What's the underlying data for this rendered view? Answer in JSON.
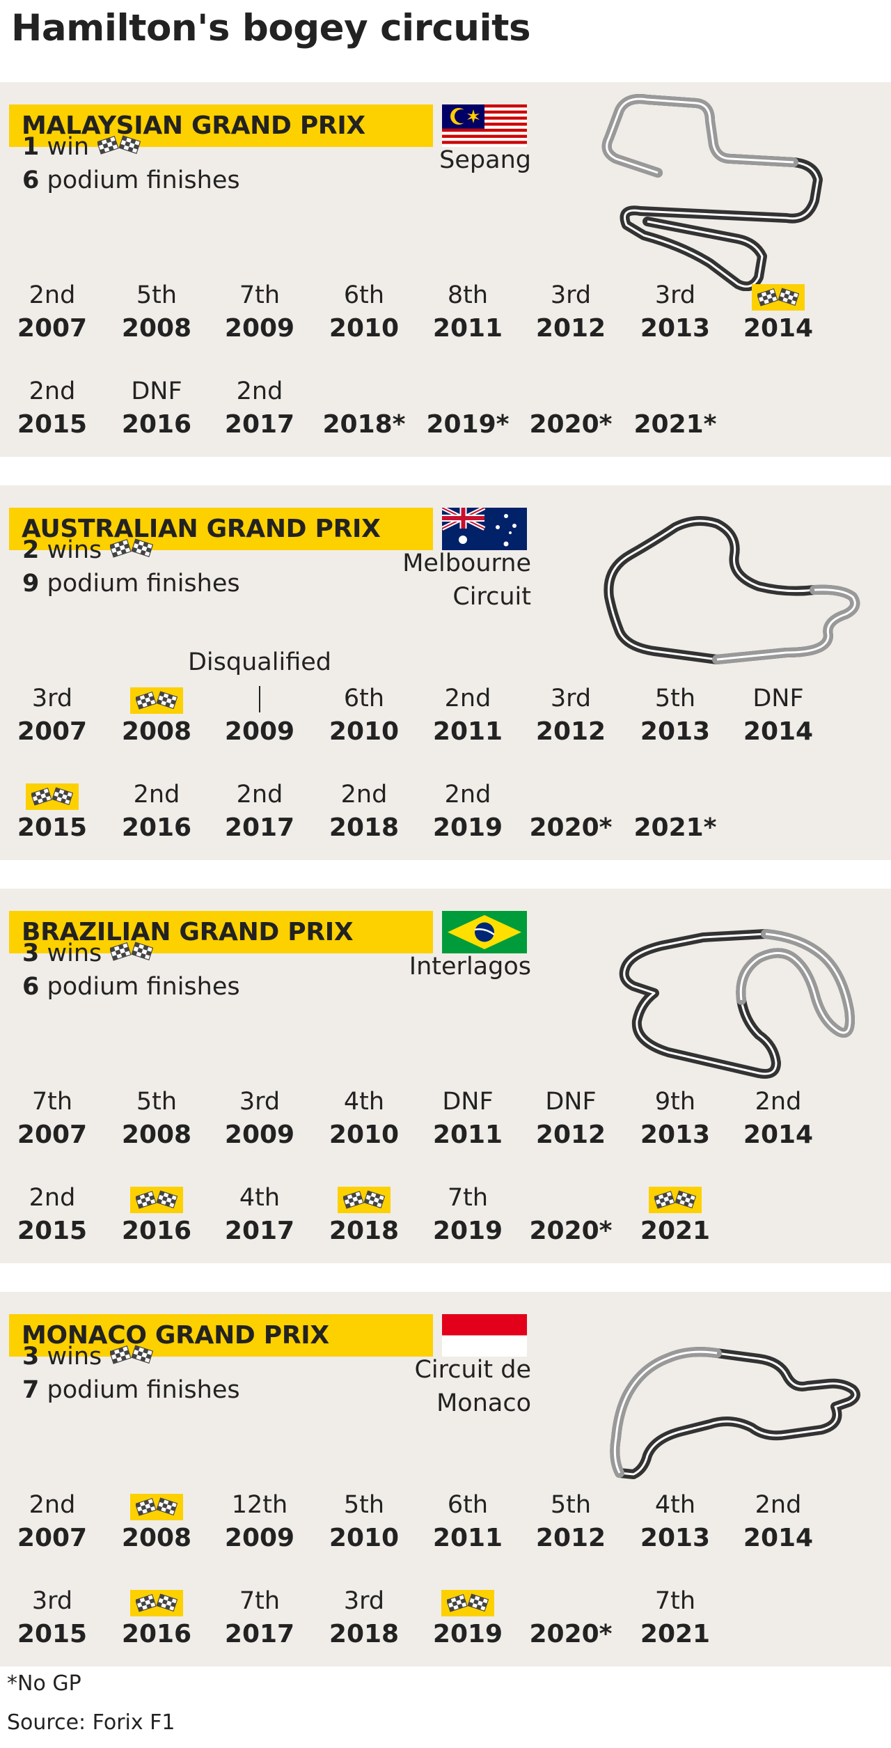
{
  "title": "Hamilton's bogey circuits",
  "footnote": "*No GP",
  "source": "Source: Forix F1",
  "races": [
    {
      "name": "MALAYSIAN GRAND PRIX",
      "flag": "malaysia-flag",
      "wins_num": "1",
      "wins_label": "win",
      "podiums_num": "6",
      "podiums_label": "podium finishes",
      "circuit_line1": "Sepang",
      "circuit_line2": "",
      "results": [
        {
          "pos": "2nd",
          "year": "2007"
        },
        {
          "pos": "5th",
          "year": "2008"
        },
        {
          "pos": "7th",
          "year": "2009"
        },
        {
          "pos": "6th",
          "year": "2010"
        },
        {
          "pos": "8th",
          "year": "2011"
        },
        {
          "pos": "3rd",
          "year": "2012"
        },
        {
          "pos": "3rd",
          "year": "2013"
        },
        {
          "pos": "",
          "year": "2014",
          "win": true
        },
        {
          "pos": "2nd",
          "year": "2015"
        },
        {
          "pos": "DNF",
          "year": "2016"
        },
        {
          "pos": "2nd",
          "year": "2017"
        },
        {
          "pos": "",
          "year": "2018*"
        },
        {
          "pos": "",
          "year": "2019*"
        },
        {
          "pos": "",
          "year": "2020*"
        },
        {
          "pos": "",
          "year": "2021*"
        }
      ]
    },
    {
      "name": "AUSTRALIAN GRAND PRIX",
      "flag": "australia-flag",
      "wins_num": "2",
      "wins_label": "wins",
      "podiums_num": "9",
      "podiums_label": "podium finishes",
      "circuit_line1": "Melbourne",
      "circuit_line2": "Circuit",
      "dq_label": "Disqualified",
      "results": [
        {
          "pos": "3rd",
          "year": "2007"
        },
        {
          "pos": "",
          "year": "2008",
          "win": true
        },
        {
          "pos": "",
          "year": "2009",
          "dq": true
        },
        {
          "pos": "6th",
          "year": "2010"
        },
        {
          "pos": "2nd",
          "year": "2011"
        },
        {
          "pos": "3rd",
          "year": "2012"
        },
        {
          "pos": "5th",
          "year": "2013"
        },
        {
          "pos": "DNF",
          "year": "2014"
        },
        {
          "pos": "",
          "year": "2015",
          "win": true
        },
        {
          "pos": "2nd",
          "year": "2016"
        },
        {
          "pos": "2nd",
          "year": "2017"
        },
        {
          "pos": "2nd",
          "year": "2018"
        },
        {
          "pos": "2nd",
          "year": "2019"
        },
        {
          "pos": "",
          "year": "2020*"
        },
        {
          "pos": "",
          "year": "2021*"
        }
      ]
    },
    {
      "name": "BRAZILIAN GRAND PRIX",
      "flag": "brazil-flag",
      "wins_num": "3",
      "wins_label": "wins",
      "podiums_num": "6",
      "podiums_label": "podium finishes",
      "circuit_line1": "Interlagos",
      "circuit_line2": "",
      "results": [
        {
          "pos": "7th",
          "year": "2007"
        },
        {
          "pos": "5th",
          "year": "2008"
        },
        {
          "pos": "3rd",
          "year": "2009"
        },
        {
          "pos": "4th",
          "year": "2010"
        },
        {
          "pos": "DNF",
          "year": "2011"
        },
        {
          "pos": "DNF",
          "year": "2012"
        },
        {
          "pos": "9th",
          "year": "2013"
        },
        {
          "pos": "2nd",
          "year": "2014"
        },
        {
          "pos": "2nd",
          "year": "2015"
        },
        {
          "pos": "",
          "year": "2016",
          "win": true
        },
        {
          "pos": "4th",
          "year": "2017"
        },
        {
          "pos": "",
          "year": "2018",
          "win": true
        },
        {
          "pos": "7th",
          "year": "2019"
        },
        {
          "pos": "",
          "year": "2020*"
        },
        {
          "pos": "",
          "year": "2021",
          "win": true
        }
      ]
    },
    {
      "name": "MONACO GRAND PRIX",
      "flag": "monaco-flag",
      "wins_num": "3",
      "wins_label": "wins",
      "podiums_num": "7",
      "podiums_label": "podium finishes",
      "circuit_line1": "Circuit de",
      "circuit_line2": "Monaco",
      "results": [
        {
          "pos": "2nd",
          "year": "2007"
        },
        {
          "pos": "",
          "year": "2008",
          "win": true
        },
        {
          "pos": "12th",
          "year": "2009"
        },
        {
          "pos": "5th",
          "year": "2010"
        },
        {
          "pos": "6th",
          "year": "2011"
        },
        {
          "pos": "5th",
          "year": "2012"
        },
        {
          "pos": "4th",
          "year": "2013"
        },
        {
          "pos": "2nd",
          "year": "2014"
        },
        {
          "pos": "3rd",
          "year": "2015"
        },
        {
          "pos": "",
          "year": "2016",
          "win": true
        },
        {
          "pos": "7th",
          "year": "2017"
        },
        {
          "pos": "3rd",
          "year": "2018"
        },
        {
          "pos": "",
          "year": "2019",
          "win": true
        },
        {
          "pos": "",
          "year": "2020*"
        },
        {
          "pos": "7th",
          "year": "2021"
        }
      ]
    }
  ],
  "colors": {
    "highlight": "#fdd000",
    "panel": "#f0ede8",
    "text": "#222222"
  }
}
